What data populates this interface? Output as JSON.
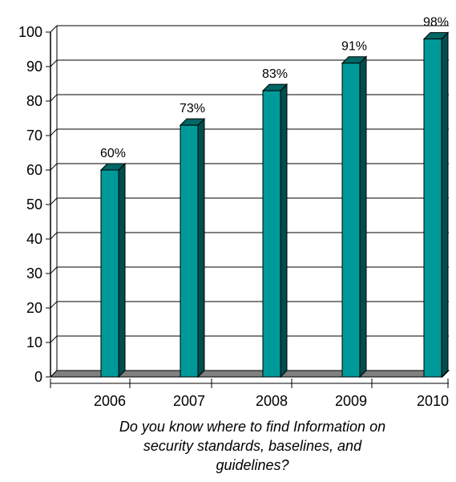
{
  "chart_data": {
    "type": "bar",
    "categories": [
      "2006",
      "2007",
      "2008",
      "2009",
      "2010"
    ],
    "values": [
      60,
      73,
      83,
      91,
      98
    ],
    "data_labels": [
      "60%",
      "73%",
      "83%",
      "91%",
      "98%"
    ],
    "title": "",
    "xlabel": "Do you know where to find Information on security standards, baselines, and guidelines?",
    "xlabel_lines": [
      "Do you know where to find Information on",
      "security standards, baselines, and",
      "guidelines?"
    ],
    "ylabel": "",
    "ylim": [
      0,
      100
    ],
    "yticks": [
      0,
      10,
      20,
      30,
      40,
      50,
      60,
      70,
      80,
      90,
      100
    ],
    "ytick_labels": [
      "0",
      "10",
      "20",
      "30",
      "40",
      "50",
      "60",
      "70",
      "80",
      "90",
      "100"
    ],
    "grid": "horizontal",
    "legend": "none",
    "style": "3d-bars"
  },
  "colors": {
    "bar_front": "#009999",
    "bar_top": "#006666",
    "bar_side": "#004d4d",
    "floor": "#808080",
    "gridline": "#000000"
  }
}
